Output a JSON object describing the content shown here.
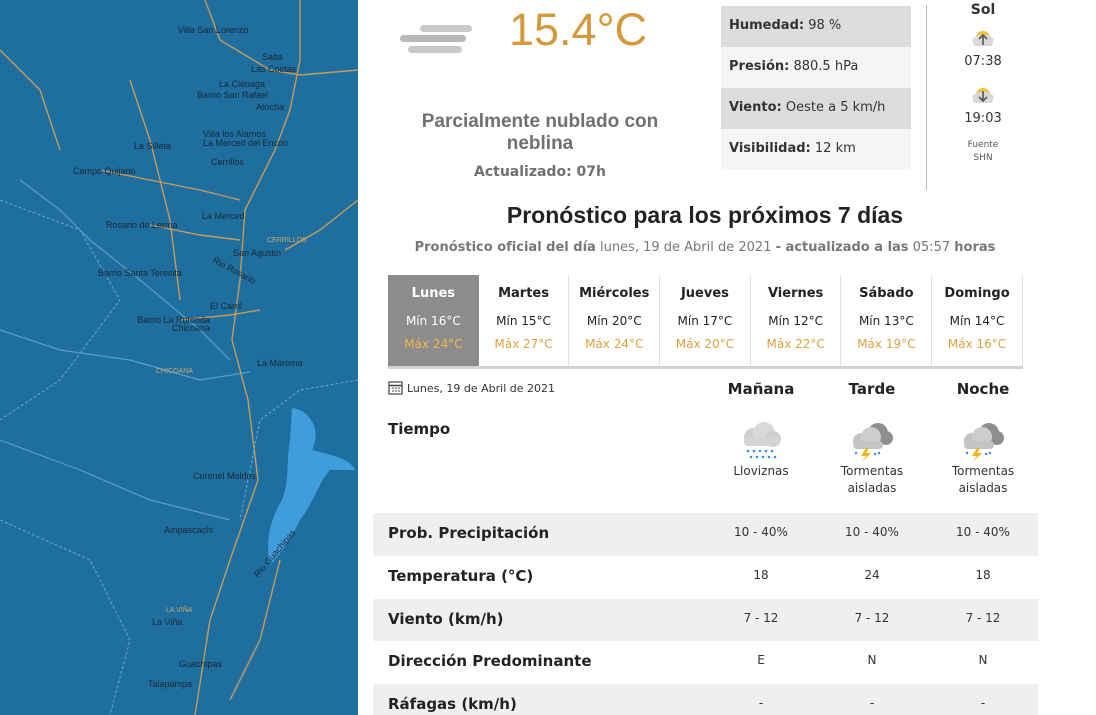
{
  "map": {
    "labels": [
      "Villa San Lorenzo",
      "Salta",
      "Las Costas",
      "La Ciénaga",
      "Barrio San Rafael",
      "Atocha",
      "Villa los Alamos",
      "La Silleta",
      "La Merced del Encon",
      "Cerrillos",
      "Campo Quijano",
      "La Merced",
      "Rosario de Lerma",
      "CERRILLOS",
      "San Agustin",
      "Rio Rosario",
      "Barrio Santa Teresita",
      "El Carril",
      "Barrio La Rotonda",
      "Chicoana",
      "CHICOANA",
      "La Maroma",
      "Coronel Moldes",
      "Ampascachi",
      "Rio Guachipas",
      "LA VIÑA",
      "La Viña",
      "Guachipas",
      "Talapampa"
    ]
  },
  "current": {
    "temperature": "15.4°C",
    "description": "Parcialmente nublado con neblina",
    "updated": "Actualizado: 07h",
    "details": [
      {
        "label": "Humedad:",
        "value": "98 %"
      },
      {
        "label": "Presión:",
        "value": "880.5 hPa"
      },
      {
        "label": "Viento:",
        "value": "Oeste a 5 km/h"
      },
      {
        "label": "Visibilidad:",
        "value": "12 km"
      }
    ]
  },
  "sun": {
    "title": "Sol",
    "sunrise": "07:38",
    "sunset": "19:03",
    "source_label": "Fuente",
    "source": "SHN"
  },
  "forecast": {
    "title": "Pronóstico para los próximos 7 días",
    "subtitle": {
      "prefix": "Pronóstico oficial del día",
      "date": "lunes, 19 de Abril de 2021",
      "updated_label": "- actualizado a las",
      "time": "05:57",
      "suffix": "horas"
    },
    "days": [
      {
        "name": "Lunes",
        "min": "Mín 16°C",
        "max": "Máx 24°C"
      },
      {
        "name": "Martes",
        "min": "Mín 15°C",
        "max": "Máx 27°C"
      },
      {
        "name": "Miércoles",
        "min": "Mín 20°C",
        "max": "Máx 24°C"
      },
      {
        "name": "Jueves",
        "min": "Mín 17°C",
        "max": "Máx 20°C"
      },
      {
        "name": "Viernes",
        "min": "Mín 12°C",
        "max": "Máx 22°C"
      },
      {
        "name": "Sábado",
        "min": "Mín 13°C",
        "max": "Máx 19°C"
      },
      {
        "name": "Domingo",
        "min": "Mín 14°C",
        "max": "Máx 16°C"
      }
    ],
    "detail": {
      "date": "Lunes, 19 de Abril de 2021",
      "periods": [
        "Mañana",
        "Tarde",
        "Noche"
      ],
      "weather_label": "Tiempo",
      "weather": [
        "Lloviznas",
        "Tormentas aisladas",
        "Tormentas aisladas"
      ],
      "rows": [
        {
          "label": "Prob. Precipitación",
          "values": [
            "10 - 40%",
            "10 - 40%",
            "10 - 40%"
          ]
        },
        {
          "label": "Temperatura (°C)",
          "values": [
            "18",
            "24",
            "18"
          ]
        },
        {
          "label": "Viento (km/h)",
          "values": [
            "7 - 12",
            "7 - 12",
            "7 - 12"
          ]
        },
        {
          "label": "Dirección Predominante",
          "values": [
            "E",
            "N",
            "N"
          ]
        },
        {
          "label": "Ráfagas (km/h)",
          "values": [
            "-",
            "-",
            "-"
          ]
        }
      ]
    }
  }
}
